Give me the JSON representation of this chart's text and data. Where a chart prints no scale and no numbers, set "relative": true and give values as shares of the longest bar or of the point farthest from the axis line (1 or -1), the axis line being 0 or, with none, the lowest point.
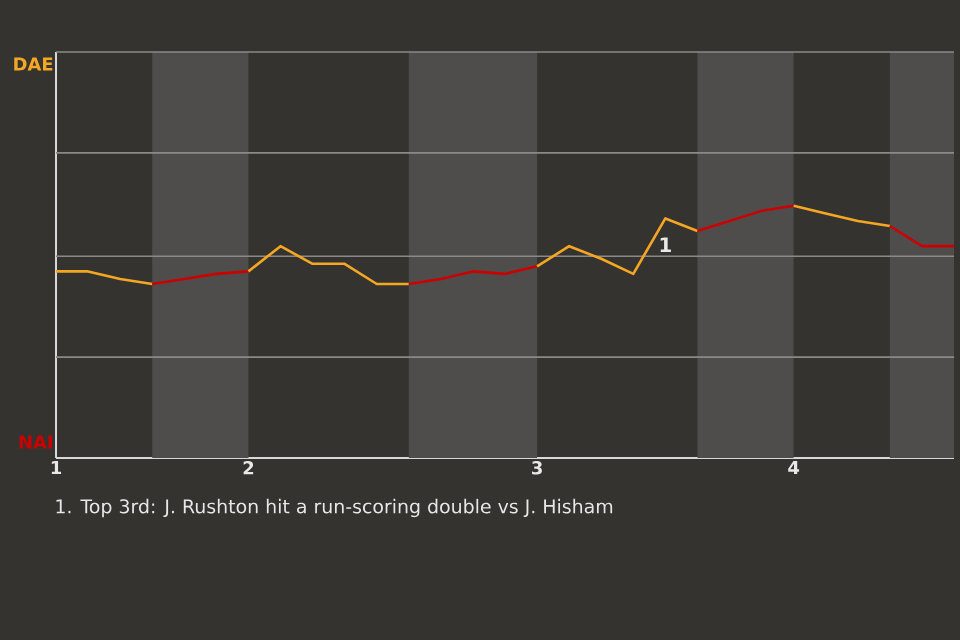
{
  "chart_data": {
    "type": "line",
    "relative": true,
    "categories": [
      "1",
      null,
      null,
      null,
      null,
      null,
      "2",
      null,
      null,
      null,
      null,
      null,
      null,
      null,
      null,
      "3",
      null,
      null,
      null,
      null,
      null,
      null,
      null,
      "4",
      null,
      null,
      null,
      null,
      null
    ],
    "ref_lines": [
      {
        "axis": "y",
        "value": 0.4,
        "color": "#8a8a88"
      },
      {
        "axis": "y",
        "value": 0.8,
        "color": "#8a8a88"
      },
      {
        "axis": "y",
        "value": 1.21,
        "color": "#8a8a88"
      },
      {
        "axis": "y",
        "value": 1.61,
        "color": "#8a8a88"
      }
    ],
    "series": [
      {
        "color": "#f5a623",
        "values": [
          0.74,
          0.74,
          0.71,
          0.69,
          null,
          null,
          null,
          null,
          null,
          null,
          null,
          null,
          null,
          null,
          null,
          null,
          null,
          null,
          null,
          null,
          null,
          null,
          null,
          null,
          null,
          null,
          null,
          null,
          null
        ]
      },
      {
        "color": "#cc0000",
        "values": [
          null,
          null,
          null,
          0.69,
          0.71,
          0.73,
          0.74,
          null,
          null,
          null,
          null,
          null,
          null,
          null,
          null,
          null,
          null,
          null,
          null,
          null,
          null,
          null,
          null,
          null,
          null,
          null,
          null,
          null,
          null
        ]
      },
      {
        "color": "#f5a623",
        "values": [
          null,
          null,
          null,
          null,
          null,
          null,
          0.74,
          0.84,
          0.77,
          0.77,
          0.69,
          0.69,
          null,
          null,
          null,
          null,
          null,
          null,
          null,
          null,
          null,
          null,
          null,
          null,
          null,
          null,
          null,
          null,
          null
        ]
      },
      {
        "color": "#cc0000",
        "values": [
          null,
          null,
          null,
          null,
          null,
          null,
          null,
          null,
          null,
          null,
          null,
          0.69,
          0.71,
          0.74,
          0.73,
          0.76,
          null,
          null,
          null,
          null,
          null,
          null,
          null,
          null,
          null,
          null,
          null,
          null,
          null
        ]
      },
      {
        "color": "#f5a623",
        "values": [
          null,
          null,
          null,
          null,
          null,
          null,
          null,
          null,
          null,
          null,
          null,
          null,
          null,
          null,
          null,
          0.76,
          0.84,
          0.79,
          0.73,
          0.95,
          0.9,
          null,
          null,
          null,
          null,
          null,
          null,
          null,
          null
        ]
      },
      {
        "color": "#cc0000",
        "values": [
          null,
          null,
          null,
          null,
          null,
          null,
          null,
          null,
          null,
          null,
          null,
          null,
          null,
          null,
          null,
          null,
          null,
          null,
          null,
          null,
          0.9,
          0.94,
          0.98,
          1,
          null,
          null,
          null,
          null,
          null
        ]
      },
      {
        "color": "#f5a623",
        "values": [
          null,
          null,
          null,
          null,
          null,
          null,
          null,
          null,
          null,
          null,
          null,
          null,
          null,
          null,
          null,
          null,
          null,
          null,
          null,
          null,
          null,
          null,
          null,
          1,
          0.97,
          0.94,
          0.92,
          null,
          null
        ]
      },
      {
        "color": "#cc0000",
        "values": [
          null,
          null,
          null,
          null,
          null,
          null,
          null,
          null,
          null,
          null,
          null,
          null,
          null,
          null,
          null,
          null,
          null,
          null,
          null,
          null,
          null,
          null,
          null,
          null,
          null,
          null,
          0.92,
          0.84,
          0.84
        ]
      }
    ],
    "annotations": [
      "DAE",
      "NAI",
      {
        "text": "1",
        "y": 0.95
      },
      "1. Top 3rd: J. Rushton hit a run-scoring double vs J. Hisham"
    ]
  }
}
